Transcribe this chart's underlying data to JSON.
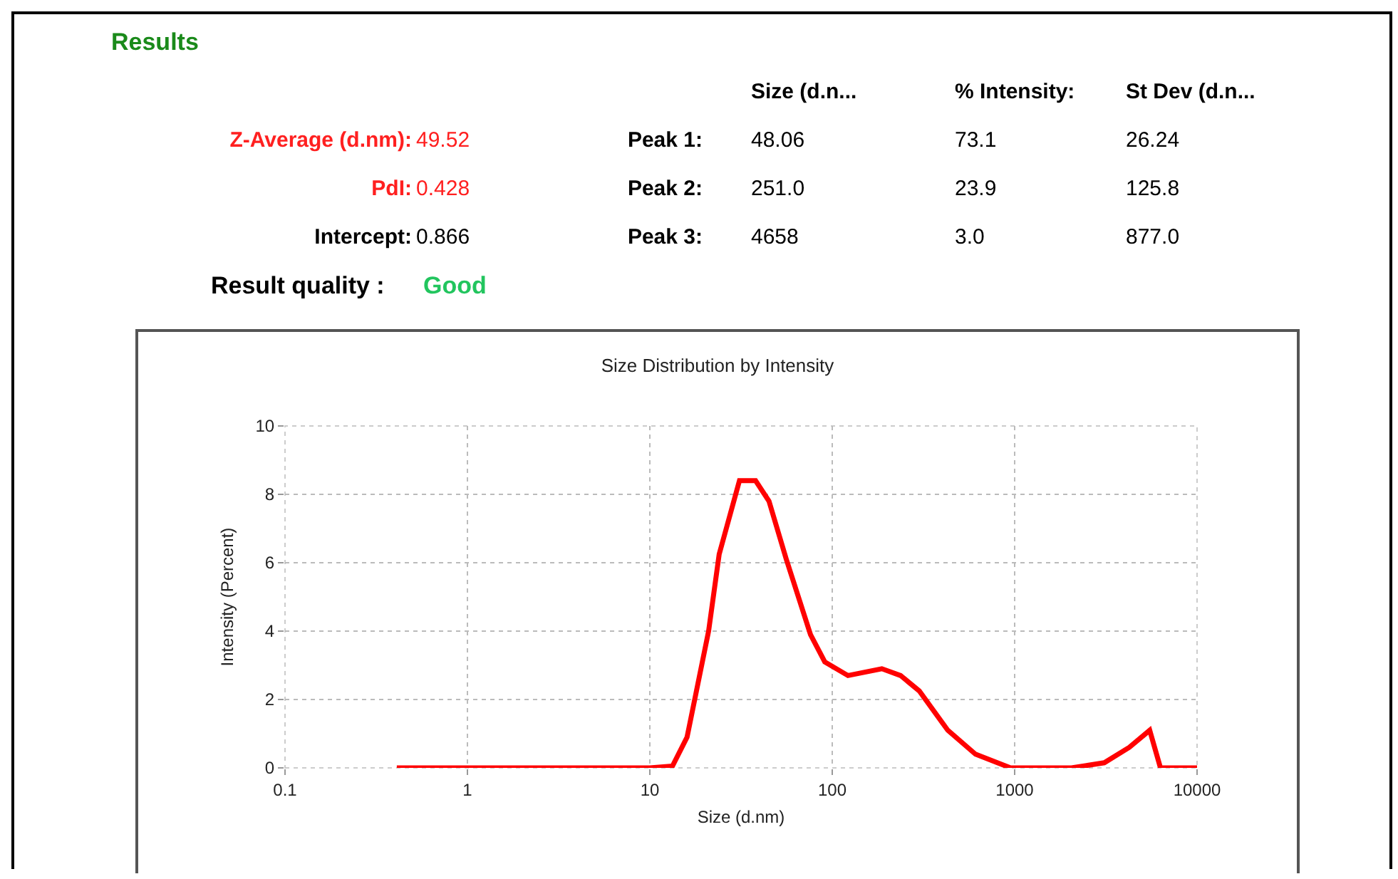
{
  "chart_data": {
    "type": "line",
    "title": "Size Distribution by Intensity",
    "xlabel": "Size (d.nm)",
    "ylabel": "Intensity (Percent)",
    "annotations": [
      "Results",
      "Size (d.n...",
      "% Intensity:",
      "St Dev (d.n...",
      "Z-Average (d.nm):",
      "49.52",
      "Peak 1:",
      "48.06",
      "73.1",
      "26.24",
      "PdI:",
      "0.428",
      "Peak 2:",
      "251.0",
      "23.9",
      "125.8",
      "Intercept:",
      "0.866",
      "Peak 3:",
      "4658",
      "3.0",
      "877.0",
      "Result quality :",
      "Good"
    ],
    "log": "x",
    "grid": true,
    "marker": "none",
    "line_style": "solid",
    "xlim": [
      0.1,
      10000
    ],
    "xticks": [
      0.1,
      1,
      10,
      100,
      1000,
      10000
    ],
    "ylim": [
      0,
      10
    ],
    "yticks": [
      0,
      2,
      4,
      6,
      8,
      10
    ],
    "series": [
      {
        "color": "#ff0000",
        "x": [
          0.41,
          10,
          13.3,
          16,
          21,
          24,
          31,
          38,
          45,
          56,
          76,
          91,
          122,
          187,
          237,
          300,
          430,
          610,
          950,
          2050,
          3100,
          4250,
          5500,
          6300,
          10000
        ],
        "values": [
          0,
          0,
          0.05,
          0.9,
          4.0,
          6.25,
          8.4,
          8.4,
          7.8,
          6.1,
          3.9,
          3.1,
          2.7,
          2.9,
          2.7,
          2.25,
          1.1,
          0.4,
          0,
          0,
          0.15,
          0.6,
          1.1,
          0,
          0
        ]
      }
    ]
  }
}
